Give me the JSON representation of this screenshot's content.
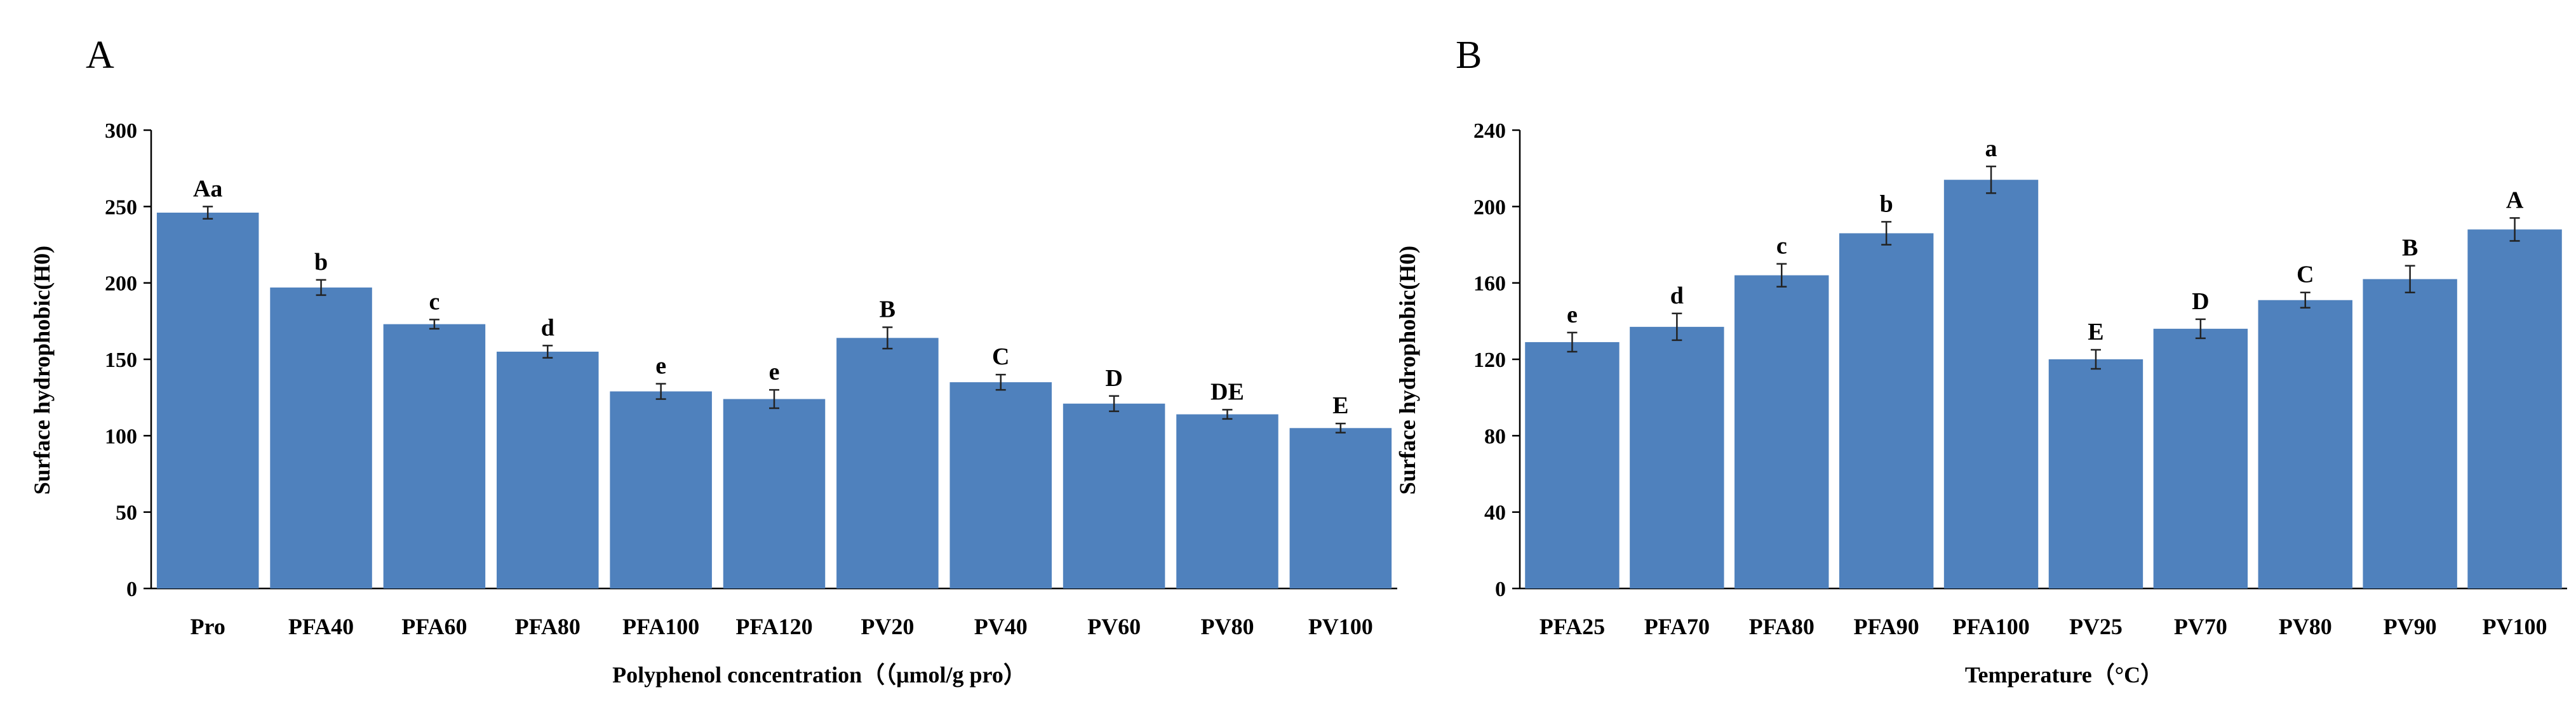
{
  "chart_data": [
    {
      "type": "bar",
      "panel_label": "A",
      "title": "",
      "xlabel": "Polyphenol concentration（（μmol/g pro）",
      "ylabel": "Surface hydrophobic(H0)",
      "ylim": [
        0,
        300
      ],
      "yticks": [
        "0",
        "50",
        "100",
        "150",
        "200",
        "250",
        "300"
      ],
      "ytick_values": [
        0,
        50,
        100,
        150,
        200,
        250,
        300
      ],
      "categories": [
        "Pro",
        "PFA40",
        "PFA60",
        "PFA80",
        "PFA100",
        "PFA120",
        "PV20",
        "PV40",
        "PV60",
        "PV80",
        "PV100"
      ],
      "values": [
        246,
        197,
        173,
        155,
        129,
        124,
        164,
        135,
        121,
        114,
        105
      ],
      "errors": [
        4,
        5,
        3,
        4,
        5,
        6,
        7,
        5,
        5,
        3,
        3
      ],
      "labels": [
        "Aa",
        "b",
        "c",
        "d",
        "e",
        "e",
        "B",
        "C",
        "D",
        "DE",
        "E"
      ],
      "bar_color": "#4f81bd"
    },
    {
      "type": "bar",
      "panel_label": "B",
      "title": "",
      "xlabel": "Temperature（°C）",
      "ylabel": "Surface hydrophobic(H0)",
      "ylim": [
        0,
        240
      ],
      "yticks": [
        "0",
        "40",
        "80",
        "120",
        "160",
        "200",
        "240"
      ],
      "ytick_values": [
        0,
        40,
        80,
        120,
        160,
        200,
        240
      ],
      "categories": [
        "PFA25",
        "PFA70",
        "PFA80",
        "PFA90",
        "PFA100",
        "PV25",
        "PV70",
        "PV80",
        "PV90",
        "PV100"
      ],
      "values": [
        129,
        137,
        164,
        186,
        214,
        120,
        136,
        151,
        162,
        188
      ],
      "errors": [
        5,
        7,
        6,
        6,
        7,
        5,
        5,
        4,
        7,
        6
      ],
      "labels": [
        "e",
        "d",
        "c",
        "b",
        "a",
        "E",
        "D",
        "C",
        "B",
        "A"
      ],
      "bar_color": "#4f81bd"
    }
  ]
}
